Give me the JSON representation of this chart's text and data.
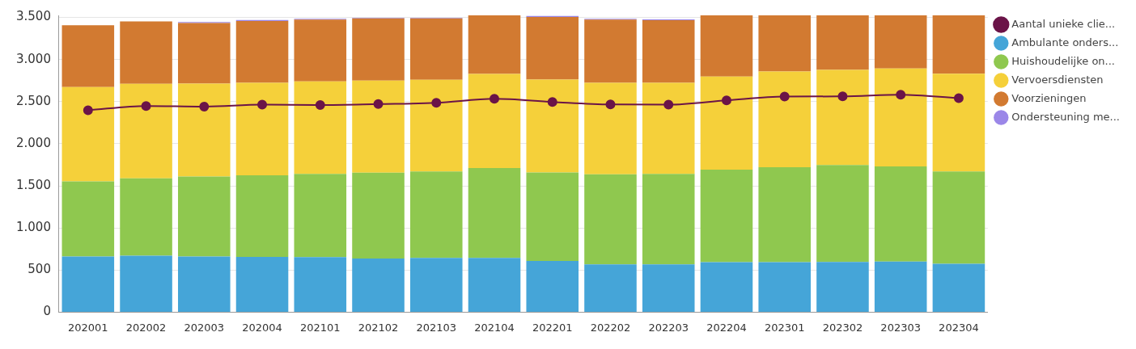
{
  "chart_data": {
    "type": "bar",
    "stacked": true,
    "categories": [
      "202001",
      "202002",
      "202003",
      "202004",
      "202101",
      "202102",
      "202103",
      "202104",
      "202201",
      "202202",
      "202203",
      "202204",
      "202301",
      "202302",
      "202303",
      "202304"
    ],
    "series": [
      {
        "name": "Ambulante onders...",
        "color": "#45a5d8",
        "values": [
          660,
          671,
          660,
          656,
          653,
          638,
          645,
          645,
          609,
          568,
          568,
          594,
          594,
          597,
          601,
          575
        ]
      },
      {
        "name": "Huishoudelijke on...",
        "color": "#8fc84f",
        "values": [
          893,
          919,
          952,
          970,
          988,
          1018,
          1026,
          1066,
          1051,
          1069,
          1073,
          1099,
          1128,
          1151,
          1129,
          1096
        ]
      },
      {
        "name": "Vervoersdiensten",
        "color": "#f5d03a",
        "values": [
          1121,
          1121,
          1102,
          1099,
          1099,
          1095,
          1088,
          1118,
          1102,
          1088,
          1084,
          1106,
          1136,
          1129,
          1165,
          1161
        ]
      },
      {
        "name": "Voorzieningen",
        "color": "#d27a31",
        "values": [
          734,
          741,
          720,
          734,
          734,
          738,
          730,
          696,
          745,
          749,
          742,
          726,
          667,
          648,
          630,
          693
        ]
      },
      {
        "name": "Ondersteuning me...",
        "color": "#9b87e8",
        "values": [
          null,
          null,
          11,
          11,
          11,
          7,
          7,
          null,
          10,
          11,
          11,
          null,
          null,
          null,
          null,
          null
        ]
      },
      {
        "name": "Aantal unieke clie...",
        "color": "#6b1448",
        "type": "line",
        "values": [
          2397,
          2449,
          2441,
          2464,
          2460,
          2471,
          2486,
          2534,
          2497,
          2467,
          2464,
          2515,
          2560,
          2563,
          2582,
          2541
        ]
      }
    ],
    "ylim": [
      0,
      3525
    ],
    "yticks": [
      0,
      {
        "value": 500,
        "label": "500"
      },
      {
        "value": 1000,
        "label": "1.000"
      },
      {
        "value": 1500,
        "label": "1.500"
      },
      {
        "value": 2000,
        "label": "2.000"
      },
      {
        "value": 2500,
        "label": "2.500"
      },
      {
        "value": 3000,
        "label": "3.000"
      },
      {
        "value": 3500,
        "label": "3.500"
      }
    ],
    "grid": "y",
    "legend": "right",
    "marker": "circle",
    "line_style": "solid"
  }
}
